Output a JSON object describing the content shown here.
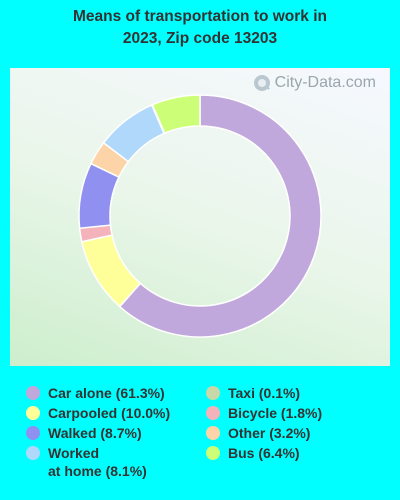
{
  "chart_data": {
    "type": "pie",
    "title": "Means of transportation to work in\n2023, Zip code 13203",
    "watermark": "City-Data.com",
    "series": [
      {
        "name": "Car alone",
        "label": "Car alone (61.3%)",
        "value": 61.3,
        "color": "#c0a8dc"
      },
      {
        "name": "Carpooled",
        "label": "Carpooled (10.0%)",
        "value": 10.0,
        "color": "#ffff99"
      },
      {
        "name": "Bicycle",
        "label": "Bicycle (1.8%)",
        "value": 1.8,
        "color": "#f4b3bb"
      },
      {
        "name": "Walked",
        "label": "Walked (8.7%)",
        "value": 8.7,
        "color": "#9090f0"
      },
      {
        "name": "Other",
        "label": "Other (3.2%)",
        "value": 3.2,
        "color": "#fdd4a8"
      },
      {
        "name": "Worked at home",
        "label": "Worked\nat home (8.1%)",
        "value": 8.1,
        "color": "#b0d8fb"
      },
      {
        "name": "Taxi",
        "label": "Taxi (0.1%)",
        "value": 0.1,
        "color": "#c8d8a8"
      },
      {
        "name": "Bus",
        "label": "Bus (6.4%)",
        "value": 6.4,
        "color": "#ccff77"
      }
    ],
    "legend_order": [
      "Car alone",
      "Carpooled",
      "Walked",
      "Worked at home",
      "Taxi",
      "Bicycle",
      "Other",
      "Bus"
    ]
  }
}
